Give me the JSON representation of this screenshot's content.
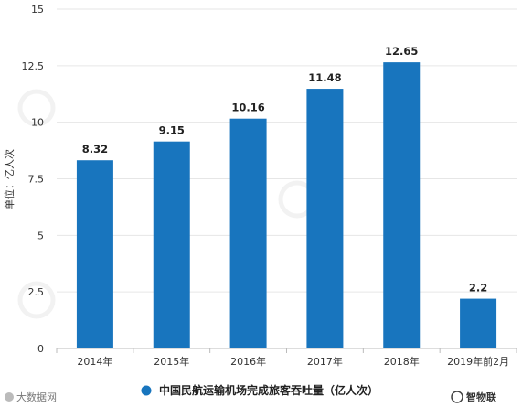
{
  "chart_data": {
    "type": "bar",
    "categories": [
      "2014年",
      "2015年",
      "2016年",
      "2017年",
      "2018年",
      "2019年前2月"
    ],
    "values": [
      8.32,
      9.15,
      10.16,
      11.48,
      12.65,
      2.2
    ],
    "data_labels": [
      "8.32",
      "9.15",
      "10.16",
      "11.48",
      "12.65",
      "2.2"
    ],
    "title": "",
    "xlabel": "",
    "ylabel": "单位：亿人次",
    "ylim": [
      0,
      15
    ],
    "yticks": [
      0,
      2.5,
      5,
      7.5,
      10,
      12.5,
      15
    ],
    "ytick_labels": [
      "0",
      "2.5",
      "5",
      "7.5",
      "10",
      "12.5",
      "15"
    ],
    "grid": true,
    "legend": {
      "position": "bottom-center",
      "entries": [
        "中国民航运输机场完成旅客吞吐量（亿人次）"
      ]
    },
    "colors": {
      "bar": "#1875be",
      "grid": "#e6e6e6",
      "axis": "#bbbbbb"
    }
  },
  "watermarks": {
    "bottom_left": "大数据网",
    "bottom_right": "智物联"
  }
}
